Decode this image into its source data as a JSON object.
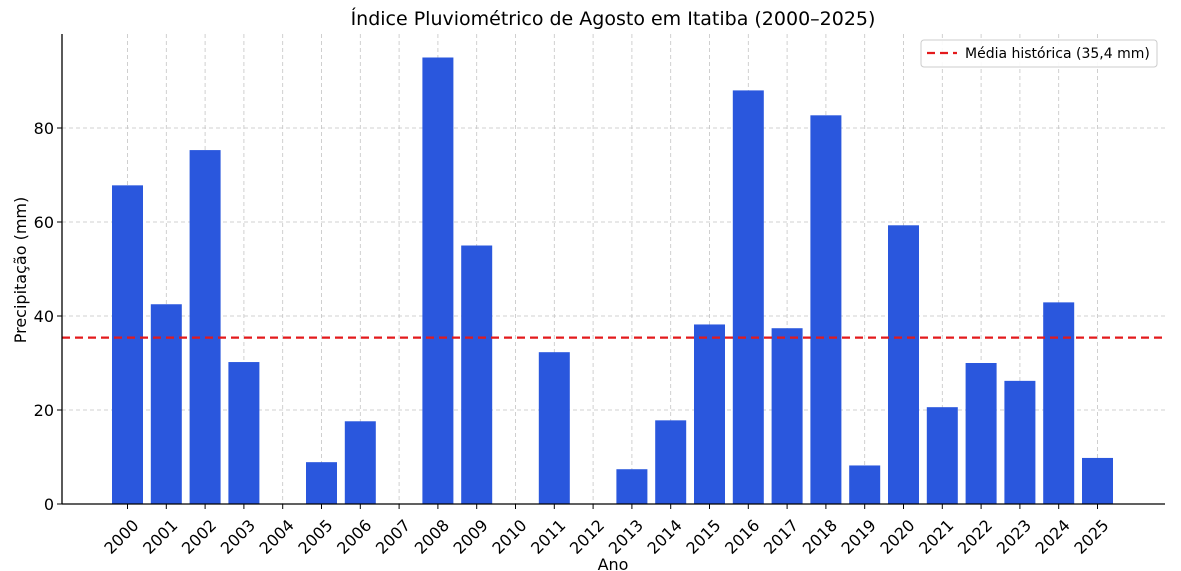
{
  "chart_data": {
    "type": "bar",
    "title": "Índice Pluviométrico de Agosto em Itatiba (2000–2025)",
    "xlabel": "Ano",
    "ylabel": "Precipitação (mm)",
    "categories": [
      "2000",
      "2001",
      "2002",
      "2003",
      "2004",
      "2005",
      "2006",
      "2007",
      "2008",
      "2009",
      "2010",
      "2011",
      "2012",
      "2013",
      "2014",
      "2015",
      "2016",
      "2017",
      "2018",
      "2019",
      "2020",
      "2021",
      "2022",
      "2023",
      "2024",
      "2025"
    ],
    "values": [
      67.8,
      42.5,
      75.3,
      30.2,
      0,
      8.9,
      17.6,
      0,
      95.0,
      55.0,
      0,
      32.3,
      0,
      7.4,
      17.8,
      38.2,
      88.0,
      37.4,
      82.7,
      8.2,
      59.3,
      20.6,
      30.0,
      26.2,
      42.9,
      9.8
    ],
    "ylim": [
      0,
      100
    ],
    "yticks": [
      0,
      20,
      40,
      60,
      80
    ],
    "grid": true,
    "bar_color": "#2a57dd",
    "reference_line": {
      "value": 35.4,
      "label": "Média histórica (35,4 mm)",
      "color": "#e31a1c",
      "style": "dashed"
    },
    "legend_position": "top-right"
  }
}
